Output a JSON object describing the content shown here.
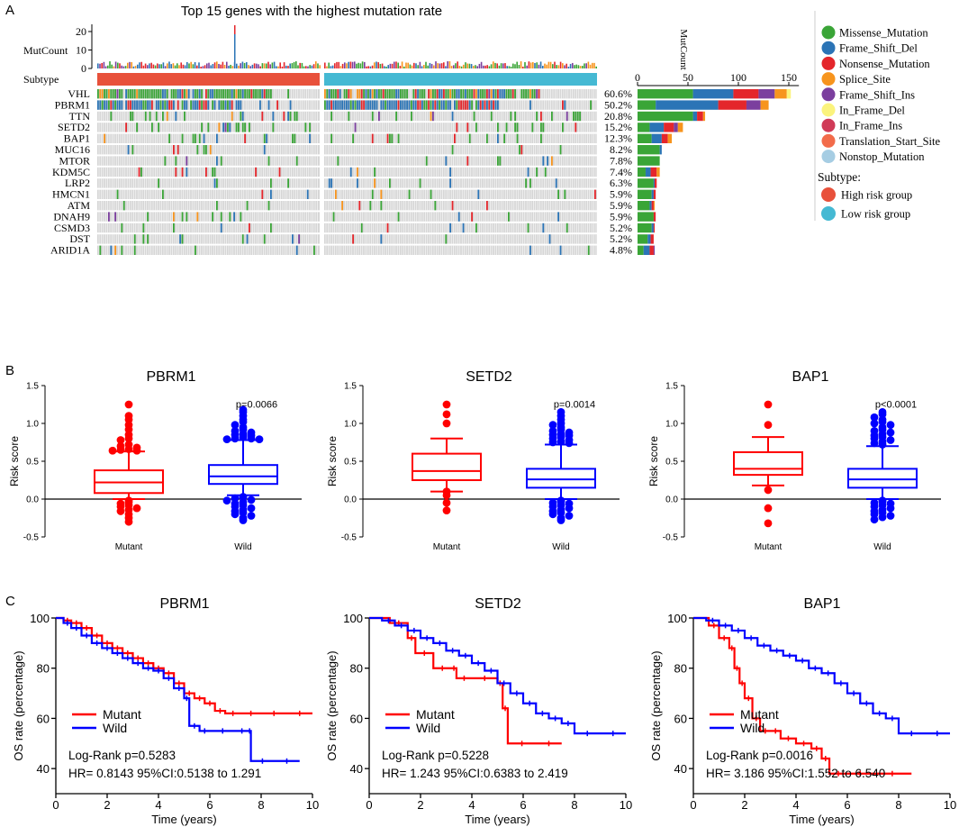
{
  "panel_labels": [
    "A",
    "B",
    "C"
  ],
  "colors": {
    "Missense_Mutation": "#3aa537",
    "Frame_Shift_Del": "#2b74b6",
    "Nonsense_Mutation": "#e4262b",
    "Splice_Site": "#f7941d",
    "Frame_Shift_Ins": "#7b3f9e",
    "In_Frame_Del": "#fbf37d",
    "In_Frame_Ins": "#d03a57",
    "Translation_Start_Site": "#f26b4a",
    "Nonstop_Mutation": "#a6cde3",
    "high": "#e8513b",
    "low": "#45b9d3",
    "mutant": "#ff0000",
    "wild": "#0000ff"
  },
  "chart_data": [
    {
      "type": "heatmap",
      "id": "oncoplot",
      "title": "Top 15 genes with the highest mutation rate",
      "top_axis_label": "MutCount",
      "top_axis_ticks": [
        "0",
        "10",
        "20"
      ],
      "subtype_label": "Subtype",
      "genes": [
        "VHL",
        "PBRM1",
        "TTN",
        "SETD2",
        "BAP1",
        "MUC16",
        "MTOR",
        "KDM5C",
        "LRP2",
        "HMCN1",
        "ATM",
        "DNAH9",
        "CSMD3",
        "DST",
        "ARID1A"
      ],
      "mutation_rates": [
        "60.6%",
        "50.2%",
        "20.8%",
        "15.2%",
        "12.3%",
        "8.2%",
        "7.8%",
        "7.4%",
        "6.3%",
        "5.9%",
        "5.9%",
        "5.9%",
        "5.2%",
        "5.2%",
        "4.8%"
      ],
      "mutation_fractions": [
        0.606,
        0.502,
        0.208,
        0.152,
        0.123,
        0.082,
        0.078,
        0.074,
        0.063,
        0.059,
        0.059,
        0.059,
        0.052,
        0.052,
        0.048
      ],
      "side_axis_label": "MutCount",
      "side_axis_ticks": [
        "0",
        "50",
        "100",
        "150"
      ],
      "side_max": 160,
      "side_counts": [
        {
          "gene": "VHL",
          "Missense_Mutation": 55,
          "Frame_Shift_Del": 40,
          "Nonsense_Mutation": 25,
          "Frame_Shift_Ins": 16,
          "Splice_Site": 12,
          "In_Frame_Del": 4
        },
        {
          "gene": "PBRM1",
          "Frame_Shift_Del": 62,
          "Missense_Mutation": 18,
          "Nonsense_Mutation": 28,
          "Frame_Shift_Ins": 14,
          "Splice_Site": 8
        },
        {
          "gene": "TTN",
          "Missense_Mutation": 55,
          "Nonsense_Mutation": 6,
          "Frame_Shift_Del": 4,
          "Splice_Site": 2
        },
        {
          "gene": "SETD2",
          "Missense_Mutation": 12,
          "Frame_Shift_Del": 14,
          "Nonsense_Mutation": 10,
          "Splice_Site": 5,
          "Frame_Shift_Ins": 4
        },
        {
          "gene": "BAP1",
          "Missense_Mutation": 14,
          "Frame_Shift_Del": 10,
          "Nonsense_Mutation": 6,
          "Splice_Site": 4
        },
        {
          "gene": "MUC16",
          "Missense_Mutation": 22,
          "Frame_Shift_Del": 2
        },
        {
          "gene": "MTOR",
          "Missense_Mutation": 22
        },
        {
          "gene": "KDM5C",
          "Missense_Mutation": 8,
          "Frame_Shift_Del": 5,
          "Nonsense_Mutation": 6,
          "Splice_Site": 3
        },
        {
          "gene": "LRP2",
          "Missense_Mutation": 16,
          "Nonsense_Mutation": 2,
          "Frame_Shift_Del": 1
        },
        {
          "gene": "HMCN1",
          "Missense_Mutation": 14,
          "Frame_Shift_Del": 2,
          "Nonsense_Mutation": 2
        },
        {
          "gene": "ATM",
          "Missense_Mutation": 12,
          "Nonsense_Mutation": 2,
          "Frame_Shift_Del": 2,
          "Splice_Site": 1
        },
        {
          "gene": "DNAH9",
          "Missense_Mutation": 16,
          "Nonsense_Mutation": 2
        },
        {
          "gene": "CSMD3",
          "Missense_Mutation": 14,
          "Frame_Shift_Del": 2,
          "Nonsense_Mutation": 1
        },
        {
          "gene": "DST",
          "Missense_Mutation": 10,
          "Frame_Shift_Del": 3,
          "Nonsense_Mutation": 3
        },
        {
          "gene": "ARID1A",
          "Missense_Mutation": 6,
          "Frame_Shift_Del": 6,
          "Nonsense_Mutation": 4,
          "Frame_Shift_Ins": 1
        }
      ],
      "legend_variants": [
        "Missense_Mutation",
        "Frame_Shift_Del",
        "Nonsense_Mutation",
        "Splice_Site",
        "Frame_Shift_Ins",
        "In_Frame_Del",
        "In_Frame_Ins",
        "Translation_Start_Site",
        "Nonstop_Mutation"
      ],
      "legend_subtype_title": "Subtype:",
      "legend_subtypes": [
        "High risk group",
        "Low risk group"
      ]
    },
    {
      "type": "box",
      "id": "box_pbrm1",
      "title": "PBRM1",
      "ylabel": "Risk score",
      "ylim": [
        -0.5,
        1.5
      ],
      "yticks": [
        "-0.5",
        "0.0",
        "0.5",
        "1.0",
        "1.5"
      ],
      "categories": [
        "Mutant",
        "Wild"
      ],
      "pvalue": "p=0.0066",
      "boxes": [
        {
          "name": "Mutant",
          "whisker_low": 0.0,
          "q1": 0.08,
          "median": 0.22,
          "q3": 0.38,
          "whisker_high": 0.63
        },
        {
          "name": "Wild",
          "whisker_low": 0.05,
          "q1": 0.2,
          "median": 0.3,
          "q3": 0.45,
          "whisker_high": 0.78
        }
      ],
      "outliers": [
        {
          "name": "Mutant",
          "values": [
            1.25,
            1.1,
            1.05,
            0.98,
            0.92,
            0.85,
            0.8,
            0.78,
            0.72,
            0.7,
            0.68,
            0.66,
            0.65,
            0.64,
            0.64,
            -0.02,
            -0.04,
            -0.06,
            -0.08,
            -0.1,
            -0.12,
            -0.14,
            -0.16,
            -0.2,
            -0.25,
            -0.3
          ]
        },
        {
          "name": "Wild",
          "values": [
            1.18,
            1.15,
            1.1,
            1.05,
            1.02,
            0.98,
            0.95,
            0.92,
            0.9,
            0.88,
            0.86,
            0.85,
            0.84,
            0.82,
            0.8,
            0.8,
            0.79,
            0.79,
            0.03,
            0.02,
            0.01,
            -0.01,
            -0.02,
            -0.04,
            -0.06,
            -0.08,
            -0.1,
            -0.12,
            -0.14,
            -0.16,
            -0.18,
            -0.2,
            -0.22,
            -0.25,
            -0.28
          ]
        }
      ]
    },
    {
      "type": "box",
      "id": "box_setd2",
      "title": "SETD2",
      "ylabel": "Risk score",
      "ylim": [
        -0.5,
        1.5
      ],
      "yticks": [
        "-0.5",
        "0.0",
        "0.5",
        "1.0",
        "1.5"
      ],
      "categories": [
        "Mutant",
        "Wild"
      ],
      "pvalue": "p=0.0014",
      "boxes": [
        {
          "name": "Mutant",
          "whisker_low": 0.1,
          "q1": 0.25,
          "median": 0.37,
          "q3": 0.6,
          "whisker_high": 0.8
        },
        {
          "name": "Wild",
          "whisker_low": 0.0,
          "q1": 0.15,
          "median": 0.26,
          "q3": 0.4,
          "whisker_high": 0.72
        }
      ],
      "outliers": [
        {
          "name": "Mutant",
          "values": [
            1.25,
            1.12,
            1.0,
            0.1,
            0.05,
            -0.05,
            -0.15
          ]
        },
        {
          "name": "Wild",
          "values": [
            1.15,
            1.1,
            1.05,
            1.0,
            0.98,
            0.95,
            0.92,
            0.9,
            0.88,
            0.86,
            0.85,
            0.84,
            0.82,
            0.8,
            0.78,
            0.76,
            0.75,
            0.74,
            -0.02,
            -0.03,
            -0.05,
            -0.06,
            -0.08,
            -0.1,
            -0.12,
            -0.14,
            -0.16,
            -0.18,
            -0.2,
            -0.22,
            -0.25,
            -0.28
          ]
        }
      ]
    },
    {
      "type": "box",
      "id": "box_bap1",
      "title": "BAP1",
      "ylabel": "Risk score",
      "ylim": [
        -0.5,
        1.5
      ],
      "yticks": [
        "-0.5",
        "0.0",
        "0.5",
        "1.0",
        "1.5"
      ],
      "categories": [
        "Mutant",
        "Wild"
      ],
      "pvalue": "p<0.0001",
      "boxes": [
        {
          "name": "Mutant",
          "whisker_low": 0.18,
          "q1": 0.32,
          "median": 0.4,
          "q3": 0.62,
          "whisker_high": 0.82
        },
        {
          "name": "Wild",
          "whisker_low": 0.0,
          "q1": 0.15,
          "median": 0.26,
          "q3": 0.4,
          "whisker_high": 0.7
        }
      ],
      "outliers": [
        {
          "name": "Mutant",
          "values": [
            1.25,
            0.98,
            0.12,
            -0.12,
            -0.32
          ]
        },
        {
          "name": "Wild",
          "values": [
            1.15,
            1.12,
            1.08,
            1.05,
            1.02,
            1.0,
            0.98,
            0.95,
            0.92,
            0.9,
            0.88,
            0.86,
            0.84,
            0.82,
            0.8,
            0.78,
            0.76,
            0.74,
            0.72,
            -0.02,
            -0.03,
            -0.05,
            -0.06,
            -0.08,
            -0.1,
            -0.12,
            -0.14,
            -0.16,
            -0.18,
            -0.2,
            -0.22,
            -0.24,
            -0.27
          ]
        }
      ]
    },
    {
      "type": "line",
      "id": "km_pbrm1",
      "title": "PBRM1",
      "xlabel": "Time (years)",
      "ylabel": "OS rate (percentage)",
      "xlim": [
        0,
        10
      ],
      "ylim": [
        30,
        100
      ],
      "xticks": [
        "0",
        "2",
        "4",
        "6",
        "8",
        "10"
      ],
      "yticks": [
        "40",
        "60",
        "80",
        "100"
      ],
      "legend": [
        "Mutant",
        "Wild"
      ],
      "stat_line1": "Log-Rank p=0.5283",
      "stat_line2": "HR= 0.8143     95%CI:0.5138 to 1.291",
      "series": [
        {
          "name": "Mutant",
          "x": [
            0,
            0.3,
            0.6,
            1.0,
            1.4,
            1.8,
            2.2,
            2.6,
            3.0,
            3.4,
            3.8,
            4.2,
            4.6,
            5.0,
            5.4,
            5.8,
            6.2,
            6.6,
            7.2,
            8.0,
            9.0,
            10.0
          ],
          "y": [
            100,
            99,
            98,
            96,
            93,
            90,
            88,
            86,
            84,
            82,
            80,
            78,
            74,
            70,
            68,
            66,
            63,
            62,
            62,
            62,
            62,
            62
          ]
        },
        {
          "name": "Wild",
          "x": [
            0,
            0.3,
            0.6,
            1.0,
            1.4,
            1.8,
            2.2,
            2.6,
            3.0,
            3.4,
            3.8,
            4.2,
            4.6,
            5.0,
            5.2,
            5.6,
            6.0,
            7.0,
            7.5,
            7.6,
            8.5,
            9.5
          ],
          "y": [
            100,
            98,
            96,
            93,
            90,
            88,
            86,
            84,
            82,
            80,
            79,
            76,
            72,
            68,
            57,
            55,
            55,
            55,
            55,
            43,
            43,
            43
          ]
        }
      ]
    },
    {
      "type": "line",
      "id": "km_setd2",
      "title": "SETD2",
      "xlabel": "Time (years)",
      "ylabel": "OS rate (percentage)",
      "xlim": [
        0,
        10
      ],
      "ylim": [
        30,
        100
      ],
      "xticks": [
        "0",
        "2",
        "4",
        "6",
        "8",
        "10"
      ],
      "yticks": [
        "40",
        "60",
        "80",
        "100"
      ],
      "legend": [
        "Mutant",
        "Wild"
      ],
      "stat_line1": "Log-Rank p=0.5228",
      "stat_line2": "HR= 1.243     95%CI:0.6383 to 2.419",
      "series": [
        {
          "name": "Mutant",
          "x": [
            0,
            0.8,
            1.5,
            1.8,
            2.5,
            3.2,
            3.4,
            4.0,
            5.0,
            5.2,
            5.4,
            6.5,
            7.5
          ],
          "y": [
            100,
            98,
            92,
            86,
            80,
            80,
            76,
            76,
            74,
            64,
            50,
            50,
            50
          ]
        },
        {
          "name": "Wild",
          "x": [
            0,
            0.5,
            1.0,
            1.5,
            2.0,
            2.5,
            3.0,
            3.5,
            4.0,
            4.5,
            5.0,
            5.5,
            6.0,
            6.5,
            7.0,
            7.5,
            8.0,
            9.0,
            10.0
          ],
          "y": [
            100,
            99,
            97,
            95,
            92,
            90,
            87,
            85,
            82,
            79,
            74,
            70,
            66,
            62,
            60,
            58,
            54,
            54,
            54
          ]
        }
      ]
    },
    {
      "type": "line",
      "id": "km_bap1",
      "title": "BAP1",
      "xlabel": "Time (years)",
      "ylabel": "OS rate (percentage)",
      "xlim": [
        0,
        10
      ],
      "ylim": [
        30,
        100
      ],
      "xticks": [
        "0",
        "2",
        "4",
        "6",
        "8",
        "10"
      ],
      "yticks": [
        "40",
        "60",
        "80",
        "100"
      ],
      "legend": [
        "Mutant",
        "Wild"
      ],
      "stat_line1": "Log-Rank p=0.0016",
      "stat_line2": "HR= 3.186     95%CI:1.552 to 6.540",
      "series": [
        {
          "name": "Mutant",
          "x": [
            0,
            0.6,
            1.0,
            1.4,
            1.6,
            1.8,
            2.0,
            2.3,
            2.6,
            3.0,
            3.4,
            4.0,
            4.6,
            5.0,
            5.3,
            6.0,
            7.0,
            8.5
          ],
          "y": [
            100,
            97,
            92,
            88,
            80,
            74,
            68,
            60,
            55,
            55,
            52,
            50,
            48,
            44,
            38,
            38,
            38,
            38
          ]
        },
        {
          "name": "Wild",
          "x": [
            0,
            0.5,
            1.0,
            1.5,
            2.0,
            2.5,
            3.0,
            3.5,
            4.0,
            4.5,
            5.0,
            5.5,
            6.0,
            6.5,
            7.0,
            7.5,
            8.0,
            9.0,
            10.0
          ],
          "y": [
            100,
            99,
            97,
            95,
            92,
            89,
            87,
            85,
            83,
            80,
            78,
            74,
            70,
            66,
            62,
            60,
            54,
            54,
            54
          ]
        }
      ]
    }
  ]
}
